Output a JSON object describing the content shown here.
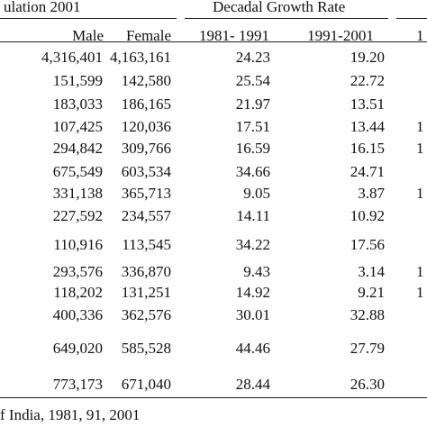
{
  "header": {
    "group1": "ulation 2001",
    "group2": "Decadal Growth Rate",
    "group3_cut": "1",
    "male": "Male",
    "female": "Female",
    "g1": "1981- 1991",
    "g2": "1991-2001"
  },
  "rows": [
    {
      "m": "4,316,401",
      "f": "4,163,161",
      "g1": "24.23",
      "g2": "19.20",
      "x": ""
    },
    {
      "m": "151,599",
      "f": "142,580",
      "g1": "25.54",
      "g2": "22.72",
      "x": ""
    },
    {
      "m": "183,033",
      "f": "186,165",
      "g1": "21.97",
      "g2": "13.51",
      "x": ""
    },
    {
      "m": "107,425",
      "f": "120,036",
      "g1": "17.51",
      "g2": "13.44",
      "x": "1"
    },
    {
      "m": "294,842",
      "f": "309,766",
      "g1": "16.59",
      "g2": "16.15",
      "x": "1"
    },
    {
      "m": "675,549",
      "f": "603,534",
      "g1": "34.66",
      "g2": "24.71",
      "x": ""
    },
    {
      "m": "331,138",
      "f": "365,713",
      "g1": "9.05",
      "g2": "3.87",
      "x": "1"
    },
    {
      "m": "227,592",
      "f": "234,557",
      "g1": "14.11",
      "g2": "10.92",
      "x": ""
    },
    {
      "m": "110,916",
      "f": "113,545",
      "g1": "34.22",
      "g2": "17.56",
      "x": ""
    },
    {
      "m": "293,576",
      "f": "336,870",
      "g1": "9.43",
      "g2": "3.14",
      "x": "1"
    },
    {
      "m": "118,202",
      "f": "131,251",
      "g1": "14.92",
      "g2": "9.21",
      "x": "1"
    },
    {
      "m": "400,336",
      "f": "362,576",
      "g1": "30.01",
      "g2": "32.88",
      "x": ""
    },
    {
      "m": "649,020",
      "f": "585,528",
      "g1": "44.46",
      "g2": "27.79",
      "x": ""
    },
    {
      "m": "773,173",
      "f": "671,040",
      "g1": "28.44",
      "g2": "26.30",
      "x": ""
    }
  ],
  "footer": "f India, 1981, 91, 2001"
}
